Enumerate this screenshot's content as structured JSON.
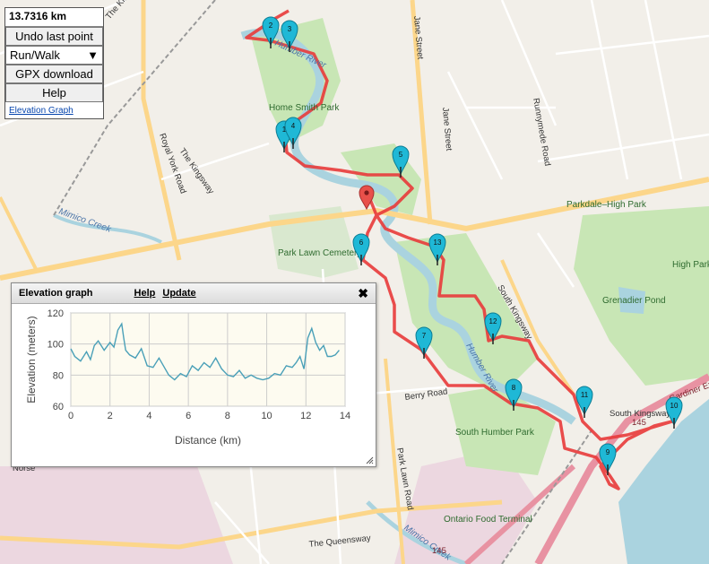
{
  "panel": {
    "distance": "13.7316 km",
    "undo_label": "Undo last point",
    "mode_value": "Run/Walk",
    "gpx_label": "GPX download",
    "help_label": "Help",
    "elevation_link": "Elevation Graph"
  },
  "elevation_window": {
    "title": "Elevation graph",
    "help_link": "Help",
    "update_link": "Update",
    "close_icon": "close-icon"
  },
  "chart_data": {
    "type": "line",
    "title": "",
    "xlabel": "Distance (km)",
    "ylabel": "Elevation (meters)",
    "xlim": [
      0,
      14
    ],
    "ylim": [
      60,
      120
    ],
    "x_ticks": [
      0,
      2,
      4,
      6,
      8,
      10,
      12,
      14
    ],
    "y_ticks": [
      60,
      80,
      100,
      120
    ],
    "grid": true,
    "line_color": "#4aa0b8",
    "series": [
      {
        "x": [
          0,
          0.2,
          0.5,
          0.8,
          1.0,
          1.2,
          1.4,
          1.7,
          2.0,
          2.2,
          2.4,
          2.6,
          2.7,
          2.8,
          3.0,
          3.3,
          3.6,
          3.9,
          4.2,
          4.5,
          5.0,
          5.3,
          5.6,
          5.9,
          6.2,
          6.5,
          6.8,
          7.1,
          7.4,
          7.7,
          8.0,
          8.3,
          8.6,
          8.9,
          9.2,
          9.5,
          9.8,
          10.1,
          10.4,
          10.7,
          11.0,
          11.3,
          11.5,
          11.7,
          11.9,
          12.1,
          12.3,
          12.5,
          12.7,
          12.9,
          13.1,
          13.3,
          13.5,
          13.7
        ],
        "y": [
          97,
          92,
          89,
          95,
          90,
          99,
          102,
          96,
          101,
          98,
          109,
          113,
          104,
          96,
          93,
          91,
          97,
          86,
          85,
          91,
          80,
          77,
          81,
          79,
          86,
          83,
          88,
          85,
          91,
          84,
          80,
          79,
          83,
          78,
          80,
          78,
          77,
          78,
          81,
          80,
          86,
          85,
          88,
          92,
          84,
          104,
          110,
          101,
          96,
          99,
          92,
          92,
          93,
          96
        ]
      }
    ]
  },
  "map": {
    "streets": [
      "The Kingsway",
      "Royal York Road",
      "The Kingsway",
      "Jane Street",
      "Jane Street",
      "Runnymede Road",
      "South Kingsway",
      "Berry Road",
      "Park Lawn Road",
      "The Queensway",
      "Norse",
      "South Kingsway",
      "Gardiner Expressway"
    ],
    "parks": [
      "Home Smith Park",
      "Park Lawn Cemetery",
      "Parkdale–High Park",
      "High Park",
      "South Humber Park",
      "Grenadier Pond",
      "Ontario Food Terminal"
    ],
    "water": [
      "Humber River",
      "Humber River",
      "Mimico Creek",
      "Mimico Creek"
    ],
    "highway_numbers": [
      "145",
      "145"
    ],
    "markers": [
      "1",
      "2",
      "3",
      "4",
      "5",
      "6",
      "7",
      "8",
      "9",
      "10",
      "11",
      "12",
      "13"
    ],
    "route_color": "#e83a3a",
    "marker_color": "#1fb8d6",
    "start_marker_color": "#e8504a"
  }
}
